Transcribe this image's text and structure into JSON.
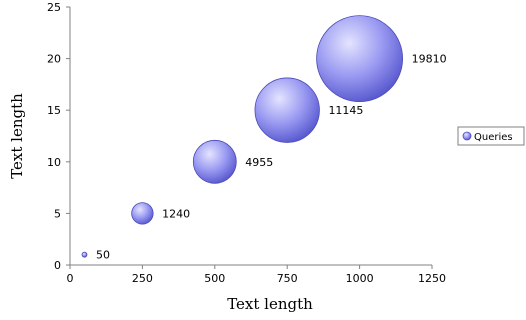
{
  "chart_data": {
    "type": "bubble",
    "xlabel": "Text length",
    "ylabel": "Text length",
    "xlim": [
      0,
      1250
    ],
    "ylim": [
      0,
      25
    ],
    "xticks": [
      0,
      250,
      500,
      750,
      1000,
      1250
    ],
    "yticks": [
      0,
      5,
      10,
      15,
      20,
      25
    ],
    "legend_position": "right",
    "grid": false,
    "series": [
      {
        "name": "Queries",
        "color": "#8080ee",
        "points": [
          {
            "x": 50,
            "y": 1,
            "size": 50,
            "label": "50"
          },
          {
            "x": 250,
            "y": 5,
            "size": 1240,
            "label": "1240"
          },
          {
            "x": 500,
            "y": 10,
            "size": 4955,
            "label": "4955"
          },
          {
            "x": 750,
            "y": 15,
            "size": 11145,
            "label": "11145"
          },
          {
            "x": 1000,
            "y": 20,
            "size": 19810,
            "label": "19810"
          }
        ]
      }
    ]
  }
}
